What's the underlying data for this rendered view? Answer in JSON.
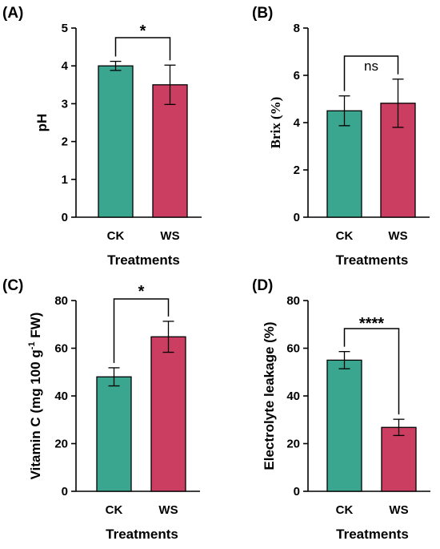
{
  "chart_data": [
    {
      "panel": "(A)",
      "type": "bar",
      "categories": [
        "CK",
        "WS"
      ],
      "values": [
        4.0,
        3.5
      ],
      "errors": [
        0.12,
        0.52
      ],
      "colors": [
        "#3aa68f",
        "#cc3d62"
      ],
      "xlabel": "Treatments",
      "ylabel": "pH",
      "ylim": [
        0,
        5
      ],
      "yticks": [
        0,
        1,
        2,
        3,
        4,
        5
      ],
      "significance": "*"
    },
    {
      "panel": "(B)",
      "type": "bar",
      "categories": [
        "CK",
        "WS"
      ],
      "values": [
        4.5,
        4.82
      ],
      "errors": [
        0.63,
        1.02
      ],
      "colors": [
        "#3aa68f",
        "#cc3d62"
      ],
      "xlabel": "Treatments",
      "ylabel": "Brix (%)",
      "ylim": [
        0,
        8
      ],
      "yticks": [
        0,
        2,
        4,
        6,
        8
      ],
      "significance": "ns"
    },
    {
      "panel": "(C)",
      "type": "bar",
      "categories": [
        "CK",
        "WS"
      ],
      "values": [
        48.0,
        64.8
      ],
      "errors": [
        3.8,
        6.5
      ],
      "colors": [
        "#3aa68f",
        "#cc3d62"
      ],
      "xlabel": "Treatments",
      "ylabel": "Vitamin C (mg 100 g",
      "ylabel_sup": "-1",
      "ylabel_tail": " FW)",
      "ylim": [
        0,
        80
      ],
      "yticks": [
        0,
        20,
        40,
        60,
        80
      ],
      "significance": "*"
    },
    {
      "panel": "(D)",
      "type": "bar",
      "categories": [
        "CK",
        "WS"
      ],
      "values": [
        55.0,
        26.8
      ],
      "errors": [
        3.6,
        3.4
      ],
      "colors": [
        "#3aa68f",
        "#cc3d62"
      ],
      "xlabel": "Treatments",
      "ylabel": "Electrolyte leakage (%)",
      "ylim": [
        0,
        80
      ],
      "yticks": [
        0,
        20,
        40,
        60,
        80
      ],
      "significance": "****"
    }
  ]
}
